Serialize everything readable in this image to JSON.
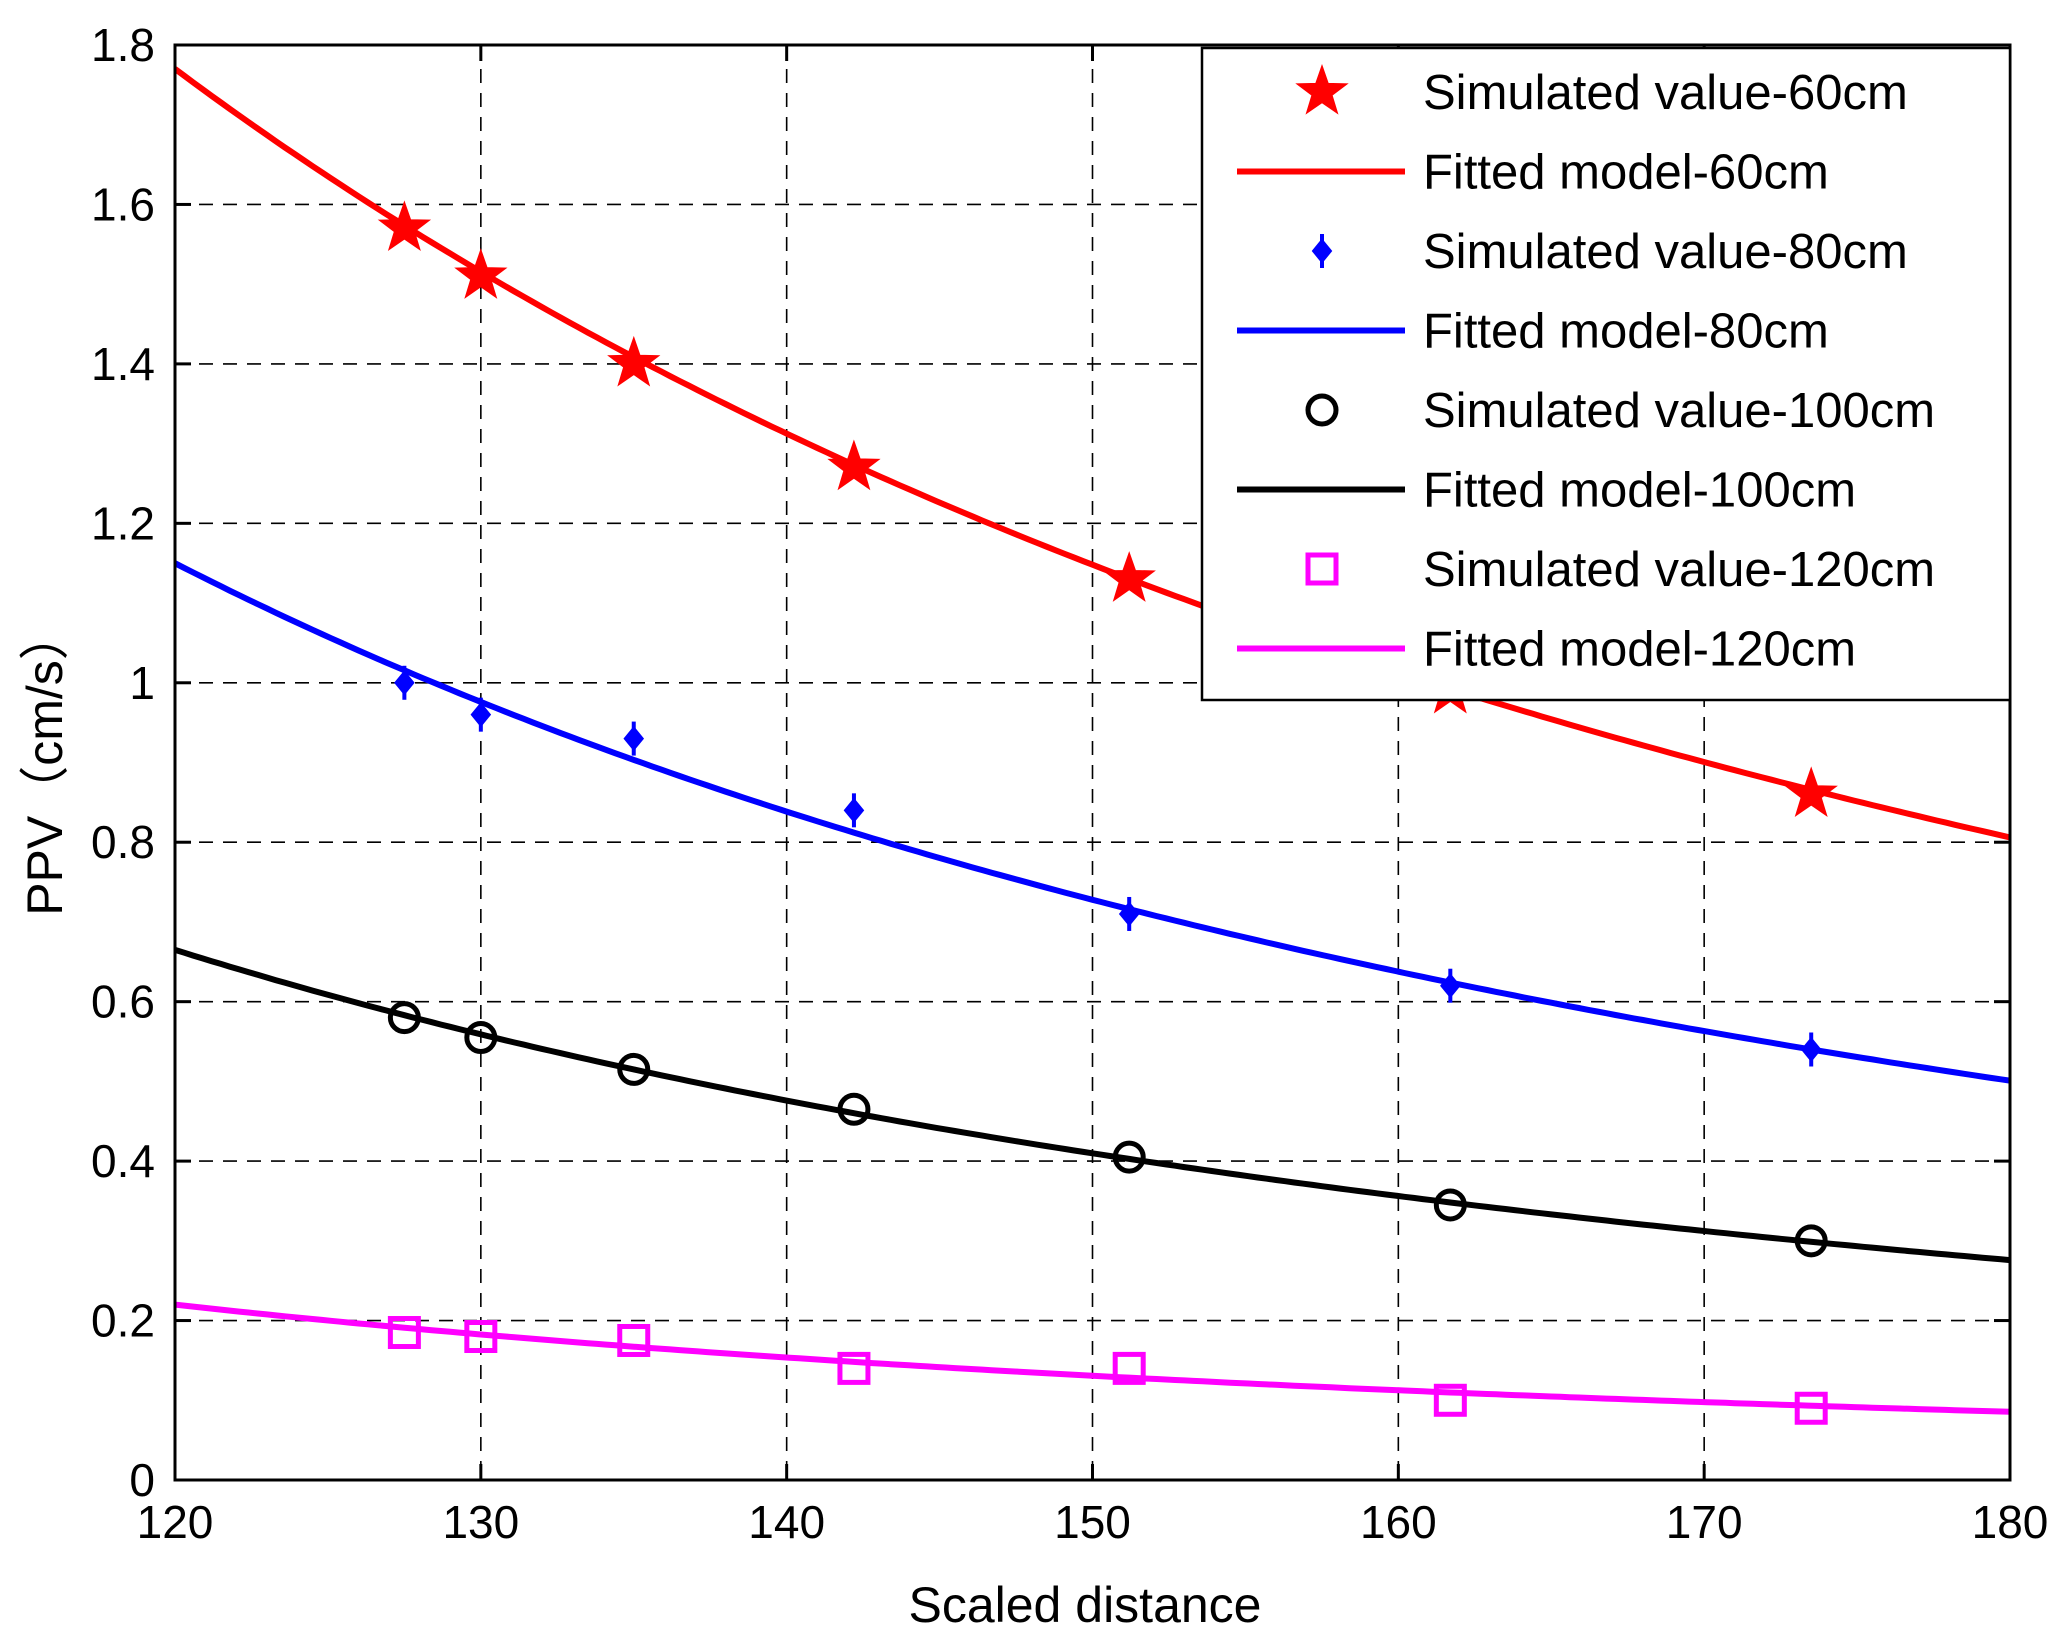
{
  "chart_data": {
    "type": "line",
    "title": "",
    "xlabel": "Scaled distance",
    "ylabel": "PPV（cm/s）",
    "xlim": [
      120,
      180
    ],
    "ylim": [
      0,
      1.8
    ],
    "xticks": [
      120,
      130,
      140,
      150,
      160,
      170,
      180
    ],
    "yticks": [
      0,
      0.2,
      0.4,
      0.6,
      0.8,
      1,
      1.2,
      1.4,
      1.6,
      1.8
    ],
    "xtick_labels": [
      "120",
      "130",
      "140",
      "150",
      "160",
      "170",
      "180"
    ],
    "ytick_labels": [
      "0",
      "0.2",
      "0.4",
      "0.6",
      "0.8",
      "1",
      "1.2",
      "1.4",
      "1.6",
      "1.8"
    ],
    "grid": true,
    "legend_position": "top-right",
    "x": [
      127.5,
      130.0,
      135.0,
      142.2,
      151.2,
      161.7,
      173.5
    ],
    "series": [
      {
        "name": "Simulated value-60cm",
        "kind": "marker",
        "marker": "star",
        "color": "#ff0000",
        "values": [
          1.57,
          1.51,
          1.4,
          1.27,
          1.13,
          0.99,
          0.86
        ]
      },
      {
        "name": "Fitted model-60cm",
        "kind": "line",
        "color": "#ff0000",
        "fit": {
          "a": 1.77,
          "b": 1.94
        }
      },
      {
        "name": "Simulated value-80cm",
        "kind": "marker",
        "marker": "diamond",
        "color": "#0000ff",
        "values": [
          1.0,
          0.96,
          0.93,
          0.84,
          0.71,
          0.62,
          0.54
        ]
      },
      {
        "name": "Fitted model-80cm",
        "kind": "line",
        "color": "#0000ff",
        "fit": {
          "a": 1.15,
          "b": 2.05
        }
      },
      {
        "name": "Simulated value-100cm",
        "kind": "marker",
        "marker": "circle",
        "color": "#000000",
        "values": [
          0.58,
          0.555,
          0.515,
          0.465,
          0.405,
          0.345,
          0.3
        ]
      },
      {
        "name": "Fitted model-100cm",
        "kind": "line",
        "color": "#000000",
        "fit": {
          "a": 0.665,
          "b": 2.17
        }
      },
      {
        "name": "Simulated value-120cm",
        "kind": "marker",
        "marker": "square",
        "color": "#ff00ff",
        "values": [
          0.185,
          0.18,
          0.175,
          0.14,
          0.14,
          0.1,
          0.09
        ]
      },
      {
        "name": "Fitted model-120cm",
        "kind": "line",
        "color": "#ff00ff",
        "fit": {
          "a": 0.22,
          "b": 2.33
        }
      }
    ]
  }
}
